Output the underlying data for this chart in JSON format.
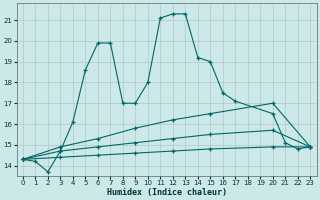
{
  "xlabel": "Humidex (Indice chaleur)",
  "xlim": [
    -0.5,
    23.5
  ],
  "ylim": [
    13.5,
    21.8
  ],
  "yticks": [
    14,
    15,
    16,
    17,
    18,
    19,
    20,
    21
  ],
  "xticks": [
    0,
    1,
    2,
    3,
    4,
    5,
    6,
    7,
    8,
    9,
    10,
    11,
    12,
    13,
    14,
    15,
    16,
    17,
    18,
    19,
    20,
    21,
    22,
    23
  ],
  "background_color": "#cce8e8",
  "grid_color": "#b0c8c8",
  "line_color": "#006666",
  "series": [
    {
      "x": [
        0,
        1,
        2,
        3,
        4,
        5,
        6,
        7,
        8,
        9,
        10,
        11,
        12,
        13,
        14,
        15,
        16,
        17,
        20,
        21,
        22,
        23
      ],
      "y": [
        14.3,
        14.2,
        13.7,
        14.7,
        16.1,
        18.6,
        19.9,
        19.9,
        17.0,
        17.0,
        18.0,
        21.1,
        21.3,
        21.3,
        19.2,
        19.0,
        17.5,
        17.1,
        16.5,
        15.1,
        14.8,
        14.9
      ]
    },
    {
      "x": [
        0,
        3,
        6,
        9,
        12,
        15,
        20,
        23
      ],
      "y": [
        14.3,
        14.9,
        15.3,
        15.8,
        16.2,
        16.5,
        17.0,
        14.9
      ]
    },
    {
      "x": [
        0,
        3,
        6,
        9,
        12,
        15,
        20,
        23
      ],
      "y": [
        14.3,
        14.7,
        14.9,
        15.1,
        15.3,
        15.5,
        15.7,
        14.9
      ]
    },
    {
      "x": [
        0,
        3,
        6,
        9,
        12,
        15,
        20,
        23
      ],
      "y": [
        14.3,
        14.4,
        14.5,
        14.6,
        14.7,
        14.8,
        14.9,
        14.9
      ]
    }
  ]
}
